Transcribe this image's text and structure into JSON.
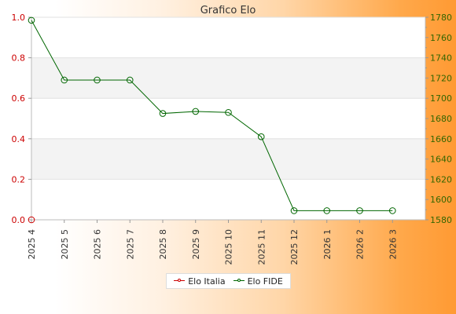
{
  "chart_data": {
    "type": "line",
    "title": "Grafico Elo",
    "categories": [
      "2025 4",
      "2025 5",
      "2025 6",
      "2025 7",
      "2025 8",
      "2025 9",
      "2025 10",
      "2025 11",
      "2025 12",
      "2026 1",
      "2026 2",
      "2026 3"
    ],
    "y_left": {
      "ylim": [
        0.0,
        1.0
      ],
      "ticks": [
        "0.0",
        "0.2",
        "0.4",
        "0.6",
        "0.8",
        "1.0"
      ],
      "color": "#cc0000"
    },
    "y_right": {
      "ylim": [
        1580,
        1780
      ],
      "ticks": [
        "1580",
        "1600",
        "1620",
        "1640",
        "1660",
        "1680",
        "1700",
        "1720",
        "1740",
        "1760",
        "1780"
      ],
      "color": "#336600"
    },
    "series": [
      {
        "name": "Elo Italia",
        "axis": "left",
        "color": "#cc0000",
        "values": [
          0.0,
          null,
          null,
          null,
          null,
          null,
          null,
          null,
          null,
          null,
          null,
          null
        ]
      },
      {
        "name": "Elo FIDE",
        "axis": "right",
        "color": "#006600",
        "values": [
          1777,
          1718,
          1718,
          1718,
          1685,
          1687,
          1686,
          1662,
          1589,
          1589,
          1589,
          1589
        ]
      }
    ],
    "grid": "horizontal bands",
    "legend": "bottom-center"
  }
}
